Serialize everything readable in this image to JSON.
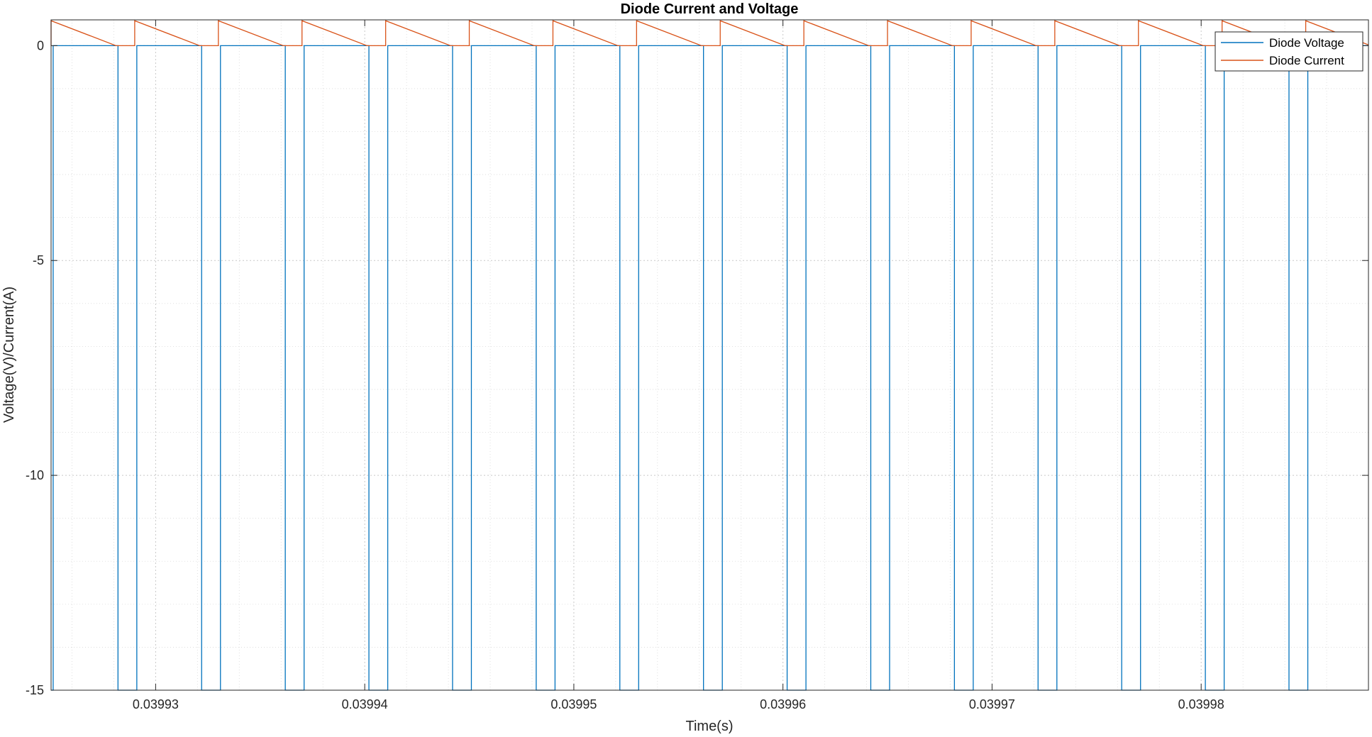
{
  "chart_data": {
    "type": "line",
    "title": "Diode Current and Voltage",
    "xlabel": "Time(s)",
    "ylabel": "Voltage(V)/Current(A)",
    "xlim": [
      0.039925,
      0.039988
    ],
    "ylim": [
      -15,
      0.6
    ],
    "xticks": [
      0.03993,
      0.03994,
      0.03995,
      0.03996,
      0.03997,
      0.03998
    ],
    "xtick_labels": [
      "0.03993",
      "0.03994",
      "0.03995",
      "0.03996",
      "0.03997",
      "0.03998"
    ],
    "yticks": [
      0,
      -5,
      -10,
      -15
    ],
    "ytick_labels": [
      "0",
      "-5",
      "-10",
      "-15"
    ],
    "minor_xticks": [
      0.039926,
      0.039928,
      0.039932,
      0.039934,
      0.039936,
      0.039938,
      0.039942,
      0.039944,
      0.039946,
      0.039948,
      0.039952,
      0.039954,
      0.039956,
      0.039958,
      0.039962,
      0.039964,
      0.039966,
      0.039968,
      0.039972,
      0.039974,
      0.039976,
      0.039978,
      0.039982,
      0.039984,
      0.039986,
      0.039988
    ],
    "minor_yticks": [
      -1,
      -2,
      -3,
      -4,
      -6,
      -7,
      -8,
      -9,
      -11,
      -12,
      -13,
      -14
    ],
    "grid": true,
    "minor_grid": true,
    "legend_position": "top-right",
    "period": 4e-06,
    "series": [
      {
        "name": "Diode Voltage",
        "color": "#0072bd",
        "shape": "pulse",
        "high": 0,
        "low": -15,
        "first_fall": 0.039925,
        "first_rise": 0.0399251,
        "low_duration": 9e-07
      },
      {
        "name": "Diode Current",
        "color": "#d95319",
        "shape": "sawtooth",
        "peak": 0.58,
        "base": 0,
        "first_peak": 0.039925,
        "ramp_duration": 3.1e-06
      }
    ]
  }
}
